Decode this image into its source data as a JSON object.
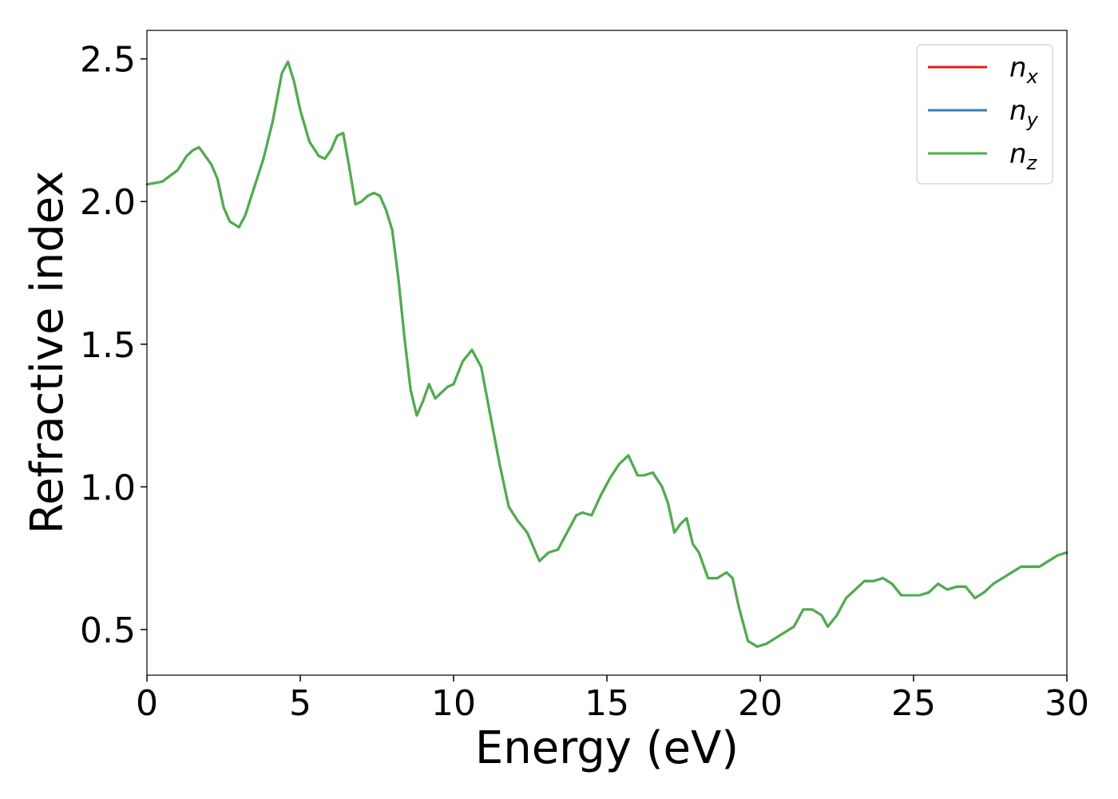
{
  "chart_data": {
    "type": "line",
    "title": "",
    "xlabel": "Energy (eV)",
    "ylabel": "Refractive index",
    "xlim": [
      0,
      30
    ],
    "ylim": [
      0.34,
      2.6
    ],
    "xticks": [
      0,
      5,
      10,
      15,
      20,
      25,
      30
    ],
    "xtick_labels": [
      "0",
      "5",
      "10",
      "15",
      "20",
      "25",
      "30"
    ],
    "yticks": [
      0.5,
      1.0,
      1.5,
      2.0,
      2.5
    ],
    "ytick_labels": [
      "0.5",
      "1.0",
      "1.5",
      "2.0",
      "2.5"
    ],
    "grid": false,
    "legend_position": "top-right",
    "series": [
      {
        "name": "n_x",
        "label_main": "n",
        "label_sub": "x",
        "color": "#e41a1c",
        "x": [
          0,
          0.5,
          1.0,
          1.3,
          1.5,
          1.7,
          1.9,
          2.1,
          2.3,
          2.5,
          2.7,
          3.0,
          3.2,
          3.5,
          3.8,
          4.1,
          4.4,
          4.6,
          4.8,
          5.0,
          5.3,
          5.6,
          5.8,
          6.0,
          6.2,
          6.4,
          6.6,
          6.8,
          7.0,
          7.2,
          7.4,
          7.6,
          7.8,
          8.0,
          8.2,
          8.4,
          8.6,
          8.8,
          9.0,
          9.2,
          9.4,
          9.6,
          9.8,
          10.0,
          10.3,
          10.6,
          10.9,
          11.2,
          11.5,
          11.8,
          12.1,
          12.4,
          12.8,
          13.1,
          13.4,
          13.7,
          14.0,
          14.2,
          14.5,
          14.8,
          15.1,
          15.4,
          15.7,
          16.0,
          16.2,
          16.5,
          16.8,
          17.0,
          17.2,
          17.4,
          17.6,
          17.8,
          18.0,
          18.3,
          18.6,
          18.9,
          19.1,
          19.3,
          19.6,
          19.9,
          20.2,
          20.5,
          20.8,
          21.1,
          21.4,
          21.7,
          22.0,
          22.2,
          22.5,
          22.8,
          23.1,
          23.4,
          23.7,
          24.0,
          24.3,
          24.6,
          24.9,
          25.2,
          25.5,
          25.8,
          26.1,
          26.4,
          26.7,
          27.0,
          27.3,
          27.6,
          27.9,
          28.2,
          28.5,
          28.8,
          29.1,
          29.4,
          29.7,
          30.0
        ],
        "y": [
          2.06,
          2.07,
          2.11,
          2.16,
          2.18,
          2.19,
          2.16,
          2.13,
          2.08,
          1.98,
          1.93,
          1.91,
          1.95,
          2.05,
          2.15,
          2.28,
          2.45,
          2.49,
          2.42,
          2.32,
          2.21,
          2.16,
          2.15,
          2.18,
          2.23,
          2.24,
          2.12,
          1.99,
          2.0,
          2.02,
          2.03,
          2.02,
          1.97,
          1.9,
          1.73,
          1.52,
          1.34,
          1.25,
          1.3,
          1.36,
          1.31,
          1.33,
          1.35,
          1.36,
          1.44,
          1.48,
          1.42,
          1.25,
          1.08,
          0.93,
          0.88,
          0.84,
          0.74,
          0.77,
          0.78,
          0.84,
          0.9,
          0.91,
          0.9,
          0.97,
          1.03,
          1.08,
          1.11,
          1.04,
          1.04,
          1.05,
          1.0,
          0.94,
          0.84,
          0.87,
          0.89,
          0.8,
          0.77,
          0.68,
          0.68,
          0.7,
          0.68,
          0.58,
          0.46,
          0.44,
          0.45,
          0.47,
          0.49,
          0.51,
          0.57,
          0.57,
          0.55,
          0.51,
          0.55,
          0.61,
          0.64,
          0.67,
          0.67,
          0.68,
          0.66,
          0.62,
          0.62,
          0.62,
          0.63,
          0.66,
          0.64,
          0.65,
          0.65,
          0.61,
          0.63,
          0.66,
          0.68,
          0.7,
          0.72,
          0.72,
          0.72,
          0.74,
          0.76,
          0.77
        ]
      },
      {
        "name": "n_y",
        "label_main": "n",
        "label_sub": "y",
        "color": "#377eb8",
        "same_as": "n_x"
      },
      {
        "name": "n_z",
        "label_main": "n",
        "label_sub": "z",
        "color": "#4daf4a",
        "same_as": "n_x"
      }
    ]
  }
}
